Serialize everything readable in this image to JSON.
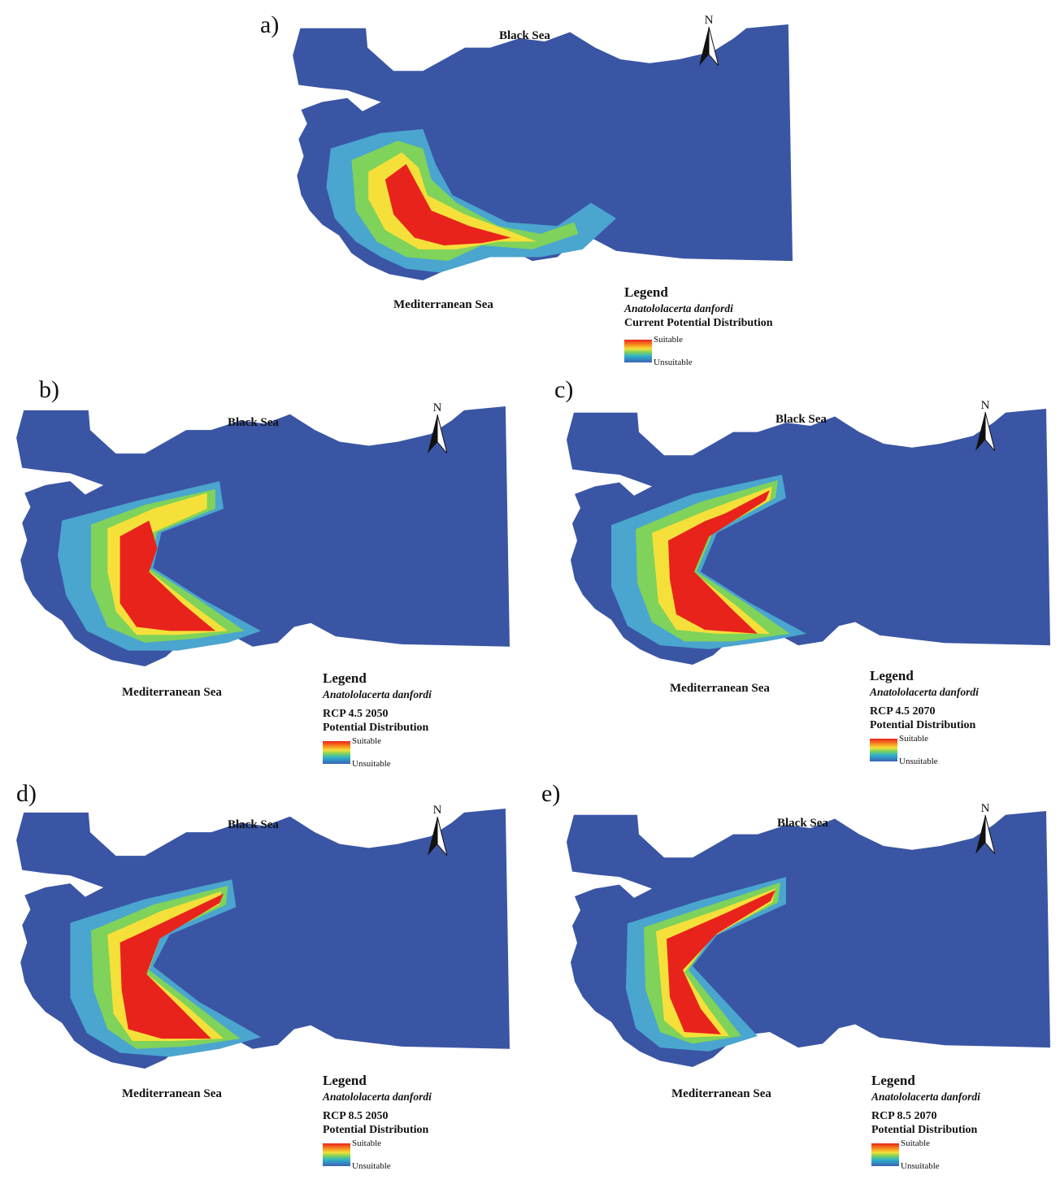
{
  "colors": {
    "unsuitable": "#3a55a4",
    "low": "#4aa5cf",
    "medium": "#f5e03a",
    "high": "#e8231c",
    "background": "#ffffff"
  },
  "panels": [
    {
      "id": "a",
      "label": "a)",
      "black_sea": "Black Sea",
      "med_sea": "Mediterranean Sea",
      "north": "N",
      "legend": {
        "title": "Legend",
        "species": "Anatololacerta danfordi",
        "scenario_line1": "Current Potential Distribution",
        "scenario_line2": "",
        "high": "Suitable",
        "low": "Unsuitable"
      }
    },
    {
      "id": "b",
      "label": "b)",
      "black_sea": "Black Sea",
      "med_sea": "Mediterranean Sea",
      "north": "N",
      "legend": {
        "title": "Legend",
        "species": "Anatololacerta danfordi",
        "scenario_line1": "RCP 4.5 2050",
        "scenario_line2": "Potential Distribution",
        "high": "Suitable",
        "low": "Unsuitable"
      }
    },
    {
      "id": "c",
      "label": "c)",
      "black_sea": "Black Sea",
      "med_sea": "Mediterranean Sea",
      "north": "N",
      "legend": {
        "title": "Legend",
        "species": "Anatololacerta danfordi",
        "scenario_line1": "RCP 4.5 2070",
        "scenario_line2": "Potential Distribution",
        "high": "Suitable",
        "low": "Unsuitable"
      }
    },
    {
      "id": "d",
      "label": "d)",
      "black_sea": "Black Sea",
      "med_sea": "Mediterranean Sea",
      "north": "N",
      "legend": {
        "title": "Legend",
        "species": "Anatololacerta danfordi",
        "scenario_line1": "RCP 8.5 2050",
        "scenario_line2": "Potential Distribution",
        "high": "Suitable",
        "low": "Unsuitable"
      }
    },
    {
      "id": "e",
      "label": "e)",
      "black_sea": "Black Sea",
      "med_sea": "Mediterranean Sea",
      "north": "N",
      "legend": {
        "title": "Legend",
        "species": "Anatololacerta danfordi",
        "scenario_line1": "RCP 8.5 2070",
        "scenario_line2": "Potential Distribution",
        "high": "Suitable",
        "low": "Unsuitable"
      }
    }
  ]
}
